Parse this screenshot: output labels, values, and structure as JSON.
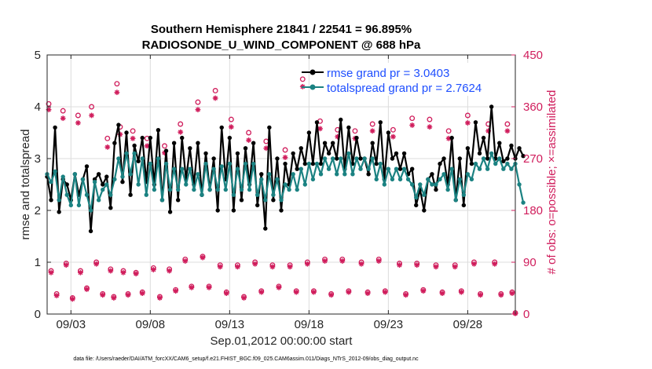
{
  "chart_data": {
    "type": "line",
    "title": "Southern Hemisphere 21841 / 22541 = 96.895%",
    "subtitle": "RADIOSONDE_U_WIND_COMPONENT @ 688 hPa",
    "xlabel": "Sep.01,2012 00:00:00 start",
    "ylabel": "rmse and totalspread",
    "ylabel_right": "# of obs: o=possible; ×=assimilated",
    "footnote": "data file: /Users/raeder/DAI/ATM_forcXX/CAM6_setup/f.e21.FHIST_BGC.f09_025.CAM6assim.011/Diags_NTrS_2012-09/obs_diag_output.nc",
    "xlim": [
      1.5,
      31.0
    ],
    "ylim": [
      0,
      5
    ],
    "ylim_right": [
      0,
      450
    ],
    "xticks": [
      3,
      8,
      13,
      18,
      23,
      28
    ],
    "xtick_labels": [
      "09/03",
      "09/08",
      "09/13",
      "09/18",
      "09/23",
      "09/28"
    ],
    "yticks": [
      0,
      1,
      2,
      3,
      4,
      5
    ],
    "ytick_labels": [
      "0",
      "1",
      "2",
      "3",
      "4",
      "5"
    ],
    "yticks_right": [
      0,
      90,
      180,
      270,
      360,
      450
    ],
    "ytick_labels_right": [
      "0",
      "90",
      "180",
      "270",
      "360",
      "450"
    ],
    "legend": [
      "rmse grand pr = 3.0403",
      "totalspread grand pr = 2.7624"
    ],
    "legend_position": "top-right",
    "colors": {
      "rmse": "#000000",
      "spread": "#1b8282",
      "obs": "#d01d5c",
      "legend_text": "#1f4fff"
    },
    "x_start": 1.5,
    "x_step": 0.25,
    "series": [
      {
        "name": "rmse",
        "values": [
          2.65,
          2.2,
          3.6,
          1.97,
          2.6,
          2.5,
          2.2,
          2.7,
          2.3,
          2.6,
          2.85,
          1.6,
          2.6,
          2.7,
          2.5,
          2.65,
          2.05,
          3.3,
          3.65,
          2.55,
          3.5,
          2.3,
          3.25,
          2.95,
          3.4,
          2.55,
          3.4,
          2.5,
          3.55,
          2.2,
          3.15,
          1.97,
          3.3,
          2.2,
          3.4,
          2.6,
          3.2,
          2.5,
          3.3,
          2.3,
          3.1,
          2.4,
          3.0,
          2.0,
          3.6,
          2.6,
          3.4,
          2.0,
          3.1,
          2.2,
          3.2,
          2.5,
          3.3,
          2.1,
          2.7,
          1.65,
          3.6,
          2.2,
          3.0,
          2.0,
          2.9,
          2.5,
          3.1,
          2.8,
          3.2,
          2.9,
          3.5,
          2.9,
          3.7,
          2.9,
          3.3,
          3.1,
          3.3,
          3.0,
          3.75,
          2.8,
          3.6,
          2.9,
          3.4,
          3.0,
          3.0,
          2.7,
          3.3,
          2.9,
          3.7,
          2.6,
          3.5,
          3.0,
          3.1,
          2.8,
          3.1,
          2.7,
          2.8,
          2.1,
          2.4,
          2.0,
          2.6,
          2.7,
          2.4,
          2.9,
          3.0,
          2.5,
          3.4,
          2.2,
          3.0,
          2.1,
          3.2,
          2.9,
          3.7,
          3.1,
          3.4,
          3.0,
          4.0,
          3.0,
          3.3,
          2.95,
          3.0,
          3.25,
          3.0,
          3.2,
          3.05
        ],
        "markers": true
      },
      {
        "name": "totalspread",
        "values": [
          2.7,
          2.55,
          2.75,
          2.2,
          2.65,
          2.3,
          2.1,
          2.7,
          2.1,
          2.6,
          2.3,
          2.0,
          2.55,
          2.2,
          2.4,
          2.5,
          2.3,
          2.6,
          3.0,
          2.65,
          3.1,
          2.7,
          3.1,
          2.5,
          3.0,
          2.3,
          2.9,
          2.4,
          3.0,
          2.2,
          2.9,
          2.4,
          2.8,
          2.4,
          2.8,
          2.5,
          2.8,
          2.4,
          2.7,
          2.3,
          2.9,
          2.4,
          2.8,
          2.4,
          2.85,
          2.4,
          2.9,
          2.3,
          2.8,
          2.4,
          2.9,
          2.4,
          2.9,
          2.3,
          2.6,
          2.2,
          2.7,
          2.3,
          2.6,
          2.2,
          2.5,
          2.4,
          2.7,
          2.4,
          2.8,
          2.5,
          2.9,
          2.6,
          2.9,
          2.7,
          3.0,
          2.8,
          3.0,
          2.7,
          3.0,
          2.7,
          3.1,
          2.7,
          3.0,
          2.8,
          3.0,
          2.8,
          3.0,
          2.6,
          2.9,
          2.5,
          2.8,
          2.6,
          2.8,
          2.6,
          2.8,
          2.6,
          2.5,
          2.25,
          2.5,
          2.3,
          2.6,
          2.5,
          2.5,
          2.6,
          2.7,
          2.4,
          2.8,
          2.2,
          2.6,
          2.3,
          2.7,
          2.6,
          2.9,
          2.8,
          3.0,
          2.8,
          3.1,
          2.9,
          3.0,
          2.8,
          2.9,
          2.8,
          2.9,
          2.5,
          2.15
        ]
      }
    ],
    "obs_series": [
      {
        "name": "possible",
        "marker": "o",
        "values": [
          [
            1.6,
            365
          ],
          [
            1.75,
            75
          ],
          [
            2.1,
            35
          ],
          [
            2.5,
            353
          ],
          [
            2.7,
            88
          ],
          [
            3.1,
            28
          ],
          [
            3.45,
            345
          ],
          [
            3.6,
            75
          ],
          [
            4.0,
            45
          ],
          [
            4.3,
            360
          ],
          [
            4.6,
            90
          ],
          [
            5.0,
            35
          ],
          [
            5.3,
            305
          ],
          [
            5.5,
            78
          ],
          [
            5.7,
            30
          ],
          [
            5.9,
            400
          ],
          [
            6.1,
            325
          ],
          [
            6.3,
            75
          ],
          [
            6.6,
            35
          ],
          [
            6.9,
            318
          ],
          [
            7.1,
            72
          ],
          [
            7.5,
            38
          ],
          [
            7.8,
            305
          ],
          [
            8.2,
            80
          ],
          [
            8.6,
            30
          ],
          [
            8.9,
            292
          ],
          [
            9.2,
            78
          ],
          [
            9.6,
            42
          ],
          [
            9.9,
            330
          ],
          [
            10.2,
            95
          ],
          [
            10.6,
            48
          ],
          [
            11.0,
            368
          ],
          [
            11.3,
            100
          ],
          [
            11.7,
            48
          ],
          [
            12.1,
            388
          ],
          [
            12.4,
            85
          ],
          [
            12.8,
            38
          ],
          [
            13.1,
            338
          ],
          [
            13.5,
            85
          ],
          [
            13.9,
            30
          ],
          [
            14.2,
            315
          ],
          [
            14.6,
            90
          ],
          [
            15.0,
            40
          ],
          [
            15.3,
            300
          ],
          [
            15.7,
            85
          ],
          [
            16.1,
            48
          ],
          [
            16.5,
            285
          ],
          [
            16.8,
            85
          ],
          [
            17.2,
            40
          ],
          [
            17.6,
            408
          ],
          [
            17.9,
            90
          ],
          [
            18.3,
            40
          ],
          [
            18.7,
            335
          ],
          [
            19.0,
            95
          ],
          [
            19.4,
            35
          ],
          [
            19.8,
            320
          ],
          [
            20.1,
            95
          ],
          [
            20.5,
            40
          ],
          [
            20.9,
            318
          ],
          [
            21.3,
            90
          ],
          [
            21.7,
            38
          ],
          [
            22.0,
            330
          ],
          [
            22.4,
            95
          ],
          [
            22.8,
            40
          ],
          [
            23.3,
            320
          ],
          [
            23.7,
            88
          ],
          [
            24.1,
            35
          ],
          [
            24.5,
            340
          ],
          [
            24.8,
            88
          ],
          [
            25.2,
            42
          ],
          [
            25.6,
            338
          ],
          [
            26.0,
            85
          ],
          [
            26.4,
            38
          ],
          [
            26.8,
            318
          ],
          [
            27.2,
            85
          ],
          [
            27.6,
            40
          ],
          [
            28.0,
            345
          ],
          [
            28.4,
            90
          ],
          [
            28.8,
            35
          ],
          [
            29.3,
            330
          ],
          [
            29.7,
            90
          ],
          [
            30.1,
            35
          ],
          [
            30.5,
            330
          ],
          [
            30.8,
            38
          ],
          [
            31.0,
            2
          ]
        ]
      },
      {
        "name": "assimilated",
        "marker": "×",
        "values": [
          [
            1.6,
            355
          ],
          [
            1.75,
            72
          ],
          [
            2.1,
            32
          ],
          [
            2.5,
            340
          ],
          [
            2.7,
            85
          ],
          [
            3.1,
            26
          ],
          [
            3.45,
            332
          ],
          [
            3.6,
            72
          ],
          [
            4.0,
            43
          ],
          [
            4.3,
            345
          ],
          [
            4.6,
            87
          ],
          [
            5.0,
            33
          ],
          [
            5.3,
            290
          ],
          [
            5.5,
            75
          ],
          [
            5.7,
            28
          ],
          [
            5.9,
            385
          ],
          [
            6.1,
            312
          ],
          [
            6.3,
            72
          ],
          [
            6.6,
            33
          ],
          [
            6.9,
            305
          ],
          [
            7.1,
            70
          ],
          [
            7.5,
            36
          ],
          [
            7.8,
            292
          ],
          [
            8.2,
            77
          ],
          [
            8.6,
            28
          ],
          [
            8.9,
            280
          ],
          [
            9.2,
            75
          ],
          [
            9.6,
            40
          ],
          [
            9.9,
            316
          ],
          [
            10.2,
            92
          ],
          [
            10.6,
            46
          ],
          [
            11.0,
            355
          ],
          [
            11.3,
            98
          ],
          [
            11.7,
            46
          ],
          [
            12.1,
            375
          ],
          [
            12.4,
            82
          ],
          [
            12.8,
            36
          ],
          [
            13.1,
            325
          ],
          [
            13.5,
            82
          ],
          [
            13.9,
            28
          ],
          [
            14.2,
            302
          ],
          [
            14.6,
            87
          ],
          [
            15.0,
            38
          ],
          [
            15.3,
            288
          ],
          [
            15.7,
            82
          ],
          [
            16.1,
            46
          ],
          [
            16.5,
            272
          ],
          [
            16.8,
            82
          ],
          [
            17.2,
            38
          ],
          [
            17.6,
            395
          ],
          [
            17.9,
            87
          ],
          [
            18.3,
            38
          ],
          [
            18.7,
            322
          ],
          [
            19.0,
            92
          ],
          [
            19.4,
            33
          ],
          [
            19.8,
            308
          ],
          [
            20.1,
            92
          ],
          [
            20.5,
            38
          ],
          [
            20.9,
            305
          ],
          [
            21.3,
            87
          ],
          [
            21.7,
            36
          ],
          [
            22.0,
            318
          ],
          [
            22.4,
            92
          ],
          [
            22.8,
            38
          ],
          [
            23.3,
            308
          ],
          [
            23.7,
            85
          ],
          [
            24.1,
            33
          ],
          [
            24.5,
            328
          ],
          [
            24.8,
            85
          ],
          [
            25.2,
            40
          ],
          [
            25.6,
            325
          ],
          [
            26.0,
            82
          ],
          [
            26.4,
            36
          ],
          [
            26.8,
            305
          ],
          [
            27.2,
            82
          ],
          [
            27.6,
            38
          ],
          [
            28.0,
            332
          ],
          [
            28.4,
            87
          ],
          [
            28.8,
            33
          ],
          [
            29.3,
            318
          ],
          [
            29.7,
            87
          ],
          [
            30.1,
            33
          ],
          [
            30.5,
            318
          ],
          [
            30.8,
            36
          ],
          [
            31.0,
            1
          ]
        ]
      }
    ]
  }
}
